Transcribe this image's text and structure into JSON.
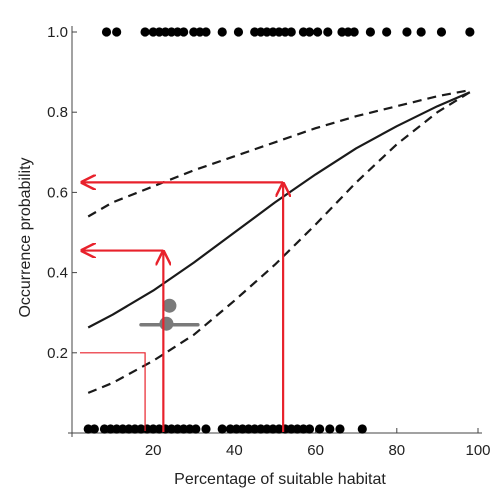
{
  "chart_data": {
    "type": "scatter",
    "title": "",
    "xlabel": "Percentage of suitable habitat",
    "ylabel": "Occurrence probability",
    "xlim": [
      0,
      100
    ],
    "ylim": [
      0,
      1.0
    ],
    "x_ticks": [
      20,
      40,
      60,
      80,
      100
    ],
    "x_tick_labels": [
      "20",
      "40",
      "60",
      "80",
      "100"
    ],
    "y_ticks": [
      0.2,
      0.4,
      0.6,
      0.8,
      1.0
    ],
    "y_tick_labels": [
      "0.2",
      "0.4",
      "0.6",
      "0.8",
      "1.0"
    ],
    "grid": false,
    "legend": "none",
    "series": [
      {
        "kind": "points",
        "color": "#000000",
        "points": [
          [
            8.5,
            1.0
          ],
          [
            11,
            1.0
          ],
          [
            18,
            1.0
          ],
          [
            20,
            1.0
          ],
          [
            21.5,
            1.0
          ],
          [
            23,
            1.0
          ],
          [
            24.5,
            1.0
          ],
          [
            26,
            1.0
          ],
          [
            27.5,
            1.0
          ],
          [
            30,
            1.0
          ],
          [
            31.5,
            1.0
          ],
          [
            33,
            1.0
          ],
          [
            37,
            1.0
          ],
          [
            41,
            1.0
          ],
          [
            45,
            1.0
          ],
          [
            46.5,
            1.0
          ],
          [
            48,
            1.0
          ],
          [
            49.5,
            1.0
          ],
          [
            51,
            1.0
          ],
          [
            52.5,
            1.0
          ],
          [
            54,
            1.0
          ],
          [
            57,
            1.0
          ],
          [
            58.5,
            1.0
          ],
          [
            60.5,
            1.0
          ],
          [
            63,
            1.0
          ],
          [
            66.5,
            1.0
          ],
          [
            68,
            1.0
          ],
          [
            69.5,
            1.0
          ],
          [
            73.5,
            1.0
          ],
          [
            77.5,
            1.0
          ],
          [
            82.5,
            1.0
          ],
          [
            86,
            1.0
          ],
          [
            91,
            1.0
          ],
          [
            98,
            1.0
          ],
          [
            4,
            0.01
          ],
          [
            5.5,
            0.01
          ],
          [
            8,
            0.01
          ],
          [
            9.5,
            0.01
          ],
          [
            11,
            0.01
          ],
          [
            12.5,
            0.01
          ],
          [
            14,
            0.01
          ],
          [
            15.5,
            0.01
          ],
          [
            17,
            0.01
          ],
          [
            18.5,
            0.01
          ],
          [
            20,
            0.01
          ],
          [
            21.5,
            0.01
          ],
          [
            23,
            0.01
          ],
          [
            24.5,
            0.01
          ],
          [
            26,
            0.01
          ],
          [
            27.5,
            0.01
          ],
          [
            29,
            0.01
          ],
          [
            30.5,
            0.01
          ],
          [
            33,
            0.01
          ],
          [
            37,
            0.01
          ],
          [
            39,
            0.01
          ],
          [
            40.5,
            0.01
          ],
          [
            42,
            0.01
          ],
          [
            43.5,
            0.01
          ],
          [
            45,
            0.01
          ],
          [
            46.5,
            0.01
          ],
          [
            48,
            0.01
          ],
          [
            49.5,
            0.01
          ],
          [
            51,
            0.01
          ],
          [
            52.5,
            0.01
          ],
          [
            54,
            0.01
          ],
          [
            55.5,
            0.01
          ],
          [
            57,
            0.01
          ],
          [
            58.5,
            0.01
          ],
          [
            61,
            0.01
          ],
          [
            63.5,
            0.01
          ],
          [
            66,
            0.01
          ],
          [
            71.5,
            0.01
          ]
        ]
      },
      {
        "kind": "line",
        "style": "solid",
        "color": "#1a1a1a",
        "x": [
          4,
          10,
          20,
          30,
          40,
          50,
          60,
          70,
          80,
          90,
          98
        ],
        "y": [
          0.263,
          0.295,
          0.355,
          0.425,
          0.5,
          0.575,
          0.645,
          0.71,
          0.765,
          0.815,
          0.85
        ]
      },
      {
        "kind": "line",
        "style": "dashed",
        "color": "#1a1a1a",
        "x": [
          4,
          10,
          20,
          30,
          40,
          50,
          60,
          70,
          80,
          90,
          98
        ],
        "y": [
          0.54,
          0.575,
          0.615,
          0.655,
          0.69,
          0.725,
          0.76,
          0.79,
          0.815,
          0.84,
          0.855
        ]
      },
      {
        "kind": "line",
        "style": "dashed",
        "color": "#1a1a1a",
        "x": [
          4,
          10,
          20,
          30,
          40,
          50,
          60,
          70,
          80,
          90,
          98
        ],
        "y": [
          0.1,
          0.125,
          0.18,
          0.245,
          0.33,
          0.42,
          0.52,
          0.625,
          0.72,
          0.8,
          0.85
        ]
      }
    ],
    "annotations": {
      "arrow_color": "#e8212b",
      "arrows": [
        {
          "x": 22.5,
          "y": 0.455
        },
        {
          "x": 52,
          "y": 0.625
        }
      ],
      "threshold": {
        "x": 18,
        "y": 0.2,
        "color": "#e8212b"
      },
      "marker": {
        "x": 24,
        "y": 0.27,
        "whisker_from": 17,
        "whisker_to": 31,
        "color": "#7a7a7a"
      }
    }
  }
}
